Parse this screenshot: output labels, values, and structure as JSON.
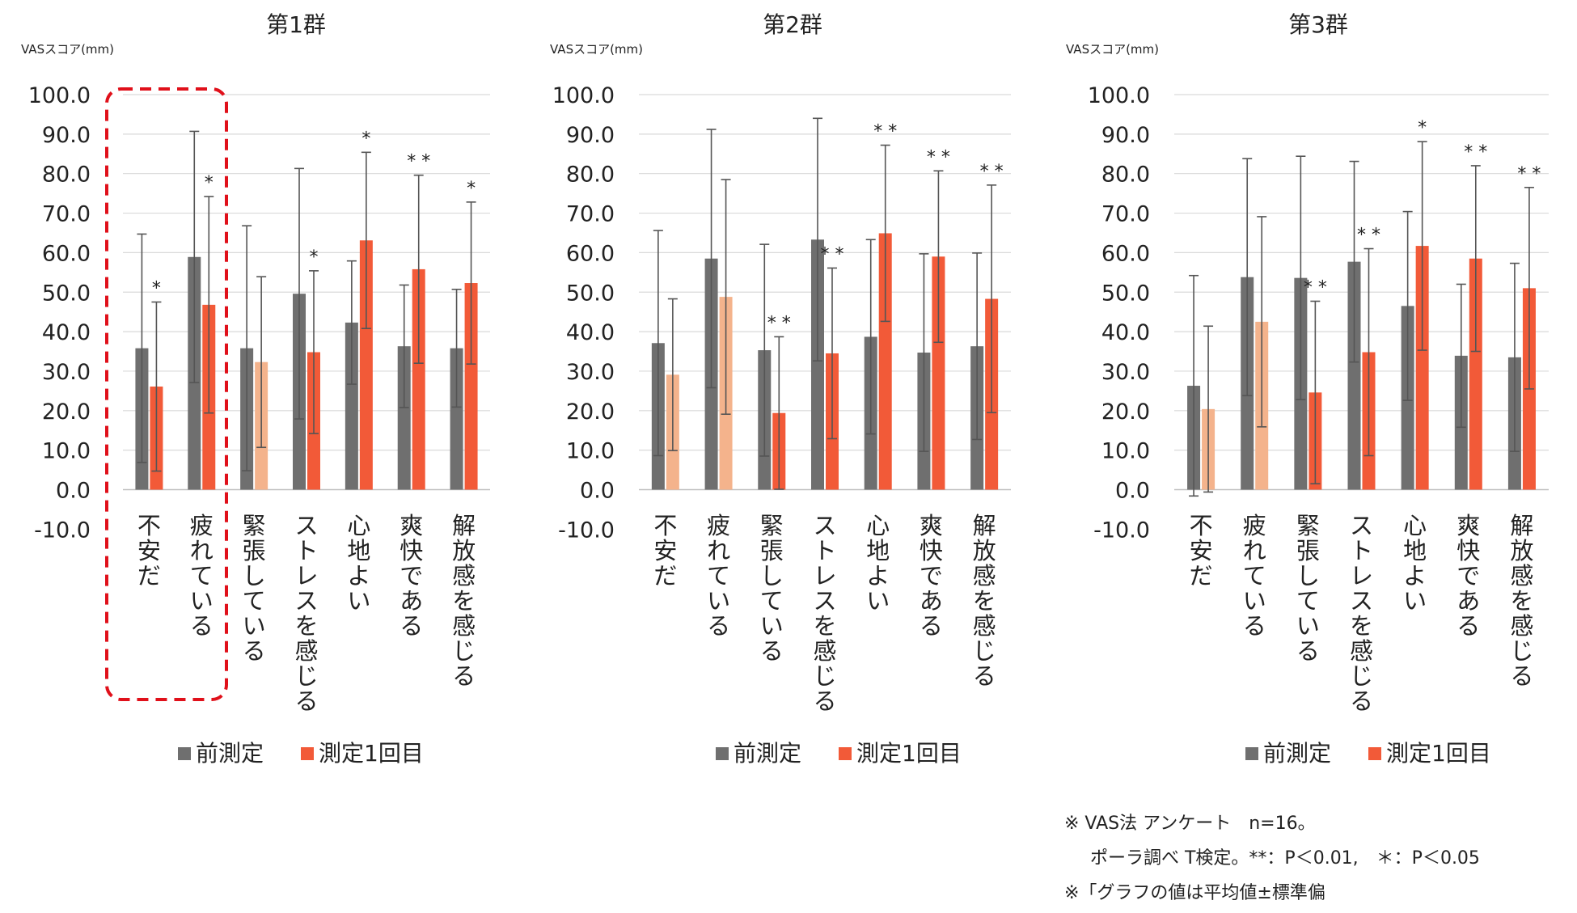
{
  "chart_data": [
    {
      "type": "bar",
      "title": "第1群",
      "ylabel": "VASスコア(mm)",
      "ylim": [
        -10,
        100
      ],
      "ytick_labels": [
        "100.0",
        "90.0",
        "80.0",
        "70.0",
        "60.0",
        "50.0",
        "40.0",
        "30.0",
        "20.0",
        "10.0",
        "0.0",
        "-10.0"
      ],
      "categories": [
        "不安だ",
        "疲れている",
        "緊張している",
        "ストレスを感じる",
        "心地よい",
        "爽快である",
        "解放感を感じる"
      ],
      "series": [
        {
          "name": "前測定",
          "color": "#6f6f6f",
          "values": [
            35.8,
            58.9,
            35.8,
            49.6,
            42.3,
            36.3,
            35.8
          ],
          "err": [
            28.9,
            31.8,
            31.0,
            31.7,
            15.6,
            15.5,
            14.9
          ]
        },
        {
          "name": "測定1回目",
          "color": "#f25a38",
          "values": [
            26.1,
            46.8,
            32.3,
            34.8,
            63.1,
            55.8,
            52.3
          ],
          "err": [
            21.4,
            27.4,
            21.6,
            20.6,
            22.3,
            23.8,
            20.5
          ],
          "faded": [
            false,
            false,
            true,
            false,
            false,
            false,
            false
          ]
        }
      ],
      "significance": [
        "*",
        "*",
        "",
        "*",
        "*",
        "**",
        "*"
      ],
      "legend": [
        "前測定",
        "測定1回目"
      ]
    },
    {
      "type": "bar",
      "title": "第2群",
      "ylabel": "VASスコア(mm)",
      "ylim": [
        -10,
        100
      ],
      "ytick_labels": [
        "100.0",
        "90.0",
        "80.0",
        "70.0",
        "60.0",
        "50.0",
        "40.0",
        "30.0",
        "20.0",
        "10.0",
        "0.0",
        "-10.0"
      ],
      "categories": [
        "不安だ",
        "疲れている",
        "緊張している",
        "ストレスを感じる",
        "心地よい",
        "爽快である",
        "解放感を感じる"
      ],
      "series": [
        {
          "name": "前測定",
          "color": "#6f6f6f",
          "values": [
            37.1,
            58.5,
            35.3,
            63.3,
            38.7,
            34.7,
            36.3
          ],
          "err": [
            28.5,
            32.7,
            26.8,
            30.7,
            24.6,
            25.0,
            23.6
          ]
        },
        {
          "name": "測定1回目",
          "color": "#f25a38",
          "values": [
            29.1,
            48.8,
            19.4,
            34.5,
            64.9,
            59.0,
            48.3
          ],
          "err": [
            19.2,
            29.7,
            19.3,
            21.6,
            22.3,
            21.7,
            28.8
          ],
          "faded": [
            true,
            true,
            false,
            false,
            false,
            false,
            false
          ]
        }
      ],
      "significance": [
        "",
        "",
        "**",
        "**",
        "**",
        "**",
        "**"
      ],
      "legend": [
        "前測定",
        "測定1回目"
      ]
    },
    {
      "type": "bar",
      "title": "第3群",
      "ylabel": "VASスコア(mm)",
      "ylim": [
        -10,
        100
      ],
      "ytick_labels": [
        "100.0",
        "90.0",
        "80.0",
        "70.0",
        "60.0",
        "50.0",
        "40.0",
        "30.0",
        "20.0",
        "10.0",
        "0.0",
        "-10.0"
      ],
      "categories": [
        "不安だ",
        "疲れている",
        "緊張している",
        "ストレスを感じる",
        "心地よい",
        "爽快である",
        "解放感を感じる"
      ],
      "series": [
        {
          "name": "前測定",
          "color": "#6f6f6f",
          "values": [
            26.3,
            53.8,
            53.6,
            57.7,
            46.5,
            33.9,
            33.5
          ],
          "err": [
            27.9,
            30.0,
            30.8,
            25.4,
            23.9,
            18.1,
            23.8
          ]
        },
        {
          "name": "測定1回目",
          "color": "#f25a38",
          "values": [
            20.4,
            42.5,
            24.6,
            34.8,
            61.7,
            58.5,
            51.0
          ],
          "err": [
            21.0,
            26.6,
            23.1,
            26.2,
            26.4,
            23.5,
            25.5
          ],
          "faded": [
            true,
            true,
            false,
            false,
            false,
            false,
            false
          ]
        }
      ],
      "significance": [
        "",
        "",
        "**",
        "**",
        "*",
        "**",
        "**"
      ],
      "legend": [
        "前測定",
        "測定1回目"
      ]
    }
  ],
  "notes": {
    "line1": "※ VAS法 アンケート　n=16。",
    "line2": "ポーラ調べ T検定。**：P＜0.01,　＊：P＜0.05",
    "line3": "※「グラフの値は平均値±標準偏"
  },
  "colors": {
    "pre": "#6f6f6f",
    "post": "#f25a38",
    "post_faded": "#f4b38c",
    "grid": "#d9d9d9",
    "highlight": "#e0101a"
  }
}
